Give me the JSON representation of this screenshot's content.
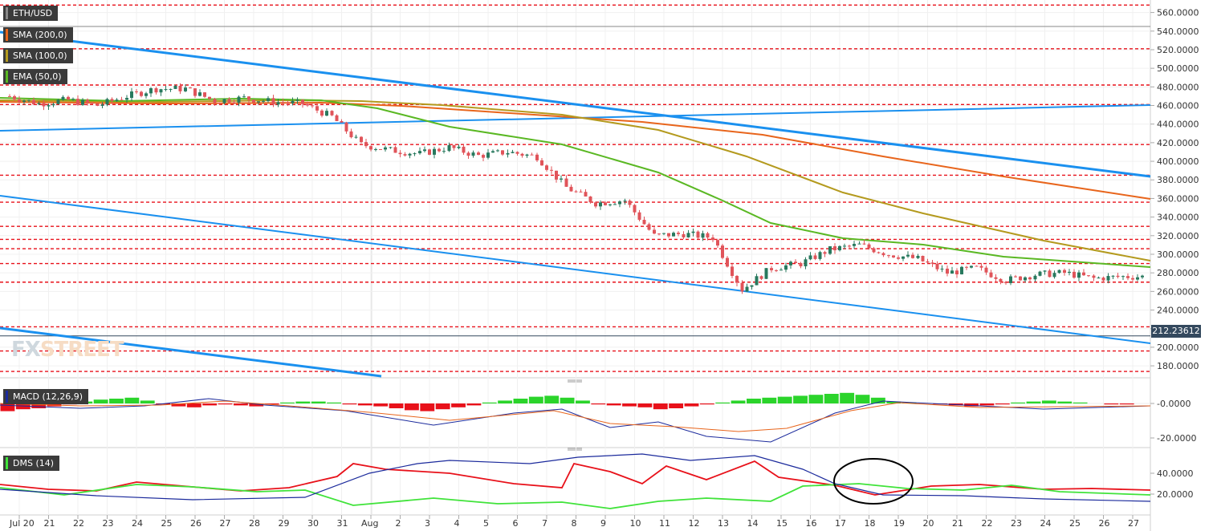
{
  "chart_data": [
    {
      "type": "line",
      "panel": "price",
      "symbol": "ETH/USD",
      "timeframe_note": "",
      "x_tick_labels": [
        "Jul 20",
        "21",
        "22",
        "23",
        "24",
        "25",
        "26",
        "27",
        "28",
        "29",
        "30",
        "31",
        "Aug",
        "2",
        "3",
        "4",
        "5",
        "6",
        "7",
        "8",
        "9",
        "10",
        "11",
        "12",
        "13",
        "14",
        "15",
        "16",
        "17",
        "18",
        "19",
        "20",
        "21",
        "22",
        "23",
        "24",
        "25",
        "26",
        "27"
      ],
      "y_ticks": [
        "180.0000",
        "200.0000",
        "220.0000",
        "240.0000",
        "260.0000",
        "280.0000",
        "300.0000",
        "320.0000",
        "340.0000",
        "360.0000",
        "380.0000",
        "400.0000",
        "420.0000",
        "440.0000",
        "460.0000",
        "480.0000",
        "500.0000",
        "520.0000",
        "540.0000",
        "560.0000"
      ],
      "ylim": [
        168,
        570
      ],
      "current_price": "212.23612",
      "indicators": [
        {
          "name": "SMA (200,0)",
          "color": "#e8651c"
        },
        {
          "name": "SMA (100,0)",
          "color": "#b49a1e"
        },
        {
          "name": "EMA (50,0)",
          "color": "#5ab823"
        }
      ],
      "close_series": [
        {
          "day": "Jul 20",
          "value": 470
        },
        {
          "day": "21",
          "value": 462
        },
        {
          "day": "22",
          "value": 466
        },
        {
          "day": "23",
          "value": 460
        },
        {
          "day": "24",
          "value": 470
        },
        {
          "day": "25",
          "value": 478
        },
        {
          "day": "26",
          "value": 478
        },
        {
          "day": "27",
          "value": 465
        },
        {
          "day": "28",
          "value": 468
        },
        {
          "day": "29",
          "value": 464
        },
        {
          "day": "30",
          "value": 462
        },
        {
          "day": "31",
          "value": 448
        },
        {
          "day": "Aug",
          "value": 418
        },
        {
          "day": "2",
          "value": 412
        },
        {
          "day": "3",
          "value": 408
        },
        {
          "day": "4",
          "value": 415
        },
        {
          "day": "5",
          "value": 406
        },
        {
          "day": "6",
          "value": 410
        },
        {
          "day": "7",
          "value": 405
        },
        {
          "day": "8",
          "value": 372
        },
        {
          "day": "9",
          "value": 355
        },
        {
          "day": "10",
          "value": 358
        },
        {
          "day": "11",
          "value": 320
        },
        {
          "day": "12",
          "value": 322
        },
        {
          "day": "13",
          "value": 318
        },
        {
          "day": "14",
          "value": 262
        },
        {
          "day": "15",
          "value": 285
        },
        {
          "day": "16",
          "value": 290
        },
        {
          "day": "17",
          "value": 305
        },
        {
          "day": "18",
          "value": 310
        },
        {
          "day": "19",
          "value": 300
        },
        {
          "day": "20",
          "value": 295
        },
        {
          "day": "21",
          "value": 280
        },
        {
          "day": "22",
          "value": 285
        },
        {
          "day": "23",
          "value": 272
        },
        {
          "day": "24",
          "value": 278
        },
        {
          "day": "25",
          "value": 280
        },
        {
          "day": "26",
          "value": 274
        },
        {
          "day": "27",
          "value": 276
        }
      ]
    },
    {
      "type": "bar",
      "panel": "macd",
      "title": "MACD (12,26,9)",
      "y_ticks": [
        "-0.0000",
        "-20.0000"
      ]
    },
    {
      "type": "line",
      "panel": "dms",
      "title": "DMS (14)",
      "y_ticks": [
        "40.0000",
        "20.0000"
      ],
      "series_colors": {
        "red": "#e8111a",
        "green": "#40e33a",
        "blue": "#1b2a9c"
      }
    }
  ],
  "labels": {
    "symbol": "ETH/USD",
    "sma200": "SMA (200,0)",
    "sma100": "SMA (100,0)",
    "ema50": "EMA (50,0)",
    "macd": "MACD (12,26,9)",
    "dms": "DMS (14)",
    "watermark_fx": "FX",
    "watermark_street": "STREET",
    "price_tag": "212.23612"
  },
  "colors": {
    "up": "#28795e",
    "down": "#e0545a",
    "trendline": "#1a90ef",
    "support": "#e8111a",
    "sma200": "#e8651c",
    "sma100": "#b49a1e",
    "ema50": "#5ab823"
  }
}
